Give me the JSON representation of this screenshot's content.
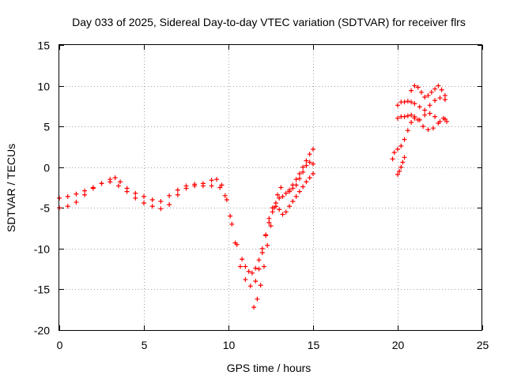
{
  "chart_data": {
    "type": "scatter",
    "title": "Day 033 of 2025, Sidereal Day-to-day VTEC variation (SDTVAR) for receiver flrs",
    "xlabel": "GPS time / hours",
    "ylabel": "SDTVAR / TECUs",
    "xlim": [
      0,
      25
    ],
    "ylim": [
      -20,
      15
    ],
    "xticks": [
      0,
      5,
      10,
      15,
      20,
      25
    ],
    "yticks": [
      -20,
      -15,
      -10,
      -5,
      0,
      5,
      10,
      15
    ],
    "xtick_labels": [
      "0",
      "5",
      "10",
      "15",
      "20",
      "25"
    ],
    "ytick_labels": [
      "-20",
      "-15",
      "-10",
      "-5",
      "0",
      "5",
      "10",
      "15"
    ],
    "grid": true,
    "marker": "plus",
    "color": "#ff0000",
    "series": [
      {
        "x": [
          0.0,
          0.5,
          1.0,
          1.5,
          2.0,
          2.5,
          3.0,
          3.3,
          3.6,
          4.0,
          4.5,
          5.0,
          5.5,
          6.0,
          6.5,
          7.0,
          7.5,
          8.0,
          8.5,
          9.0,
          9.3,
          9.6,
          9.9,
          10.2,
          10.5,
          10.8,
          11.0,
          11.2,
          11.4,
          11.6,
          11.8,
          12.0,
          12.2,
          12.4,
          12.6,
          12.8,
          13.0,
          13.2,
          13.4,
          13.6,
          13.8,
          14.0,
          14.2,
          14.4,
          14.6,
          14.8,
          15.0
        ],
        "y": [
          -3.8,
          -3.6,
          -3.3,
          -2.9,
          -2.5,
          -2.0,
          -1.5,
          -1.3,
          -1.8,
          -2.6,
          -3.2,
          -3.6,
          -4.0,
          -4.2,
          -3.5,
          -2.8,
          -2.3,
          -2.1,
          -2.0,
          -1.6,
          -1.5,
          -2.2,
          -4.0,
          -7.0,
          -9.5,
          -11.3,
          -12.2,
          -12.8,
          -13.0,
          -12.4,
          -11.4,
          -10.0,
          -8.3,
          -6.8,
          -5.5,
          -4.4,
          -3.8,
          -3.6,
          -3.2,
          -2.8,
          -2.2,
          -1.5,
          -0.8,
          0.0,
          0.8,
          1.6,
          2.2
        ]
      },
      {
        "x": [
          0.0,
          0.5,
          1.0,
          1.5,
          2.0,
          2.5,
          3.0,
          3.5,
          4.0,
          4.5,
          5.0,
          5.5,
          6.0,
          6.5,
          7.0,
          7.5,
          8.0,
          8.5,
          9.0,
          9.5,
          9.8,
          10.1,
          10.4,
          10.7,
          11.0,
          11.3,
          11.6,
          11.8,
          12.0,
          12.2,
          12.4,
          12.6,
          12.8,
          13.0,
          13.2,
          13.4,
          13.6,
          13.8,
          14.0,
          14.2,
          14.4,
          14.6,
          14.8,
          15.0
        ],
        "y": [
          -5.0,
          -4.8,
          -4.3,
          -3.4,
          -2.6,
          -2.0,
          -1.8,
          -2.3,
          -3.0,
          -3.8,
          -4.4,
          -4.8,
          -5.1,
          -4.6,
          -3.4,
          -2.6,
          -2.3,
          -2.3,
          -2.3,
          -2.5,
          -3.5,
          -6.0,
          -9.3,
          -12.2,
          -13.8,
          -14.6,
          -14.0,
          -12.5,
          -10.5,
          -8.4,
          -6.3,
          -5.0,
          -4.8,
          -5.2,
          -5.8,
          -5.5,
          -4.8,
          -4.2,
          -3.6,
          -3.0,
          -2.4,
          -1.8,
          -1.3,
          -0.8
        ]
      },
      {
        "x": [
          11.5,
          11.7,
          11.9,
          12.1,
          12.3,
          12.5,
          12.7,
          12.9,
          13.1
        ],
        "y": [
          -17.2,
          -16.2,
          -14.5,
          -12.2,
          -9.6,
          -7.2,
          -5.0,
          -3.4,
          -2.5
        ]
      },
      {
        "x": [
          13.6,
          13.8,
          14.0,
          14.2,
          14.4,
          14.6,
          14.8,
          15.0
        ],
        "y": [
          -3.0,
          -2.6,
          -2.2,
          -1.4,
          -0.6,
          0.2,
          0.6,
          0.4
        ]
      },
      {
        "x": [
          19.7,
          19.8,
          20.0,
          20.2,
          20.4,
          20.6,
          20.8,
          21.0,
          21.2,
          21.5,
          21.8,
          22.1,
          22.4,
          22.7,
          22.9
        ],
        "y": [
          1.0,
          1.8,
          2.2,
          2.6,
          3.4,
          4.5,
          5.5,
          6.0,
          5.8,
          5.0,
          4.6,
          4.8,
          5.4,
          6.0,
          5.6
        ]
      },
      {
        "x": [
          20.0,
          20.2,
          20.4,
          20.6,
          20.8,
          21.0,
          21.3,
          21.6,
          21.9,
          22.2,
          22.5,
          22.8
        ],
        "y": [
          6.0,
          6.2,
          6.2,
          6.3,
          6.4,
          6.2,
          5.8,
          6.4,
          6.6,
          6.2,
          5.6,
          5.9
        ]
      },
      {
        "x": [
          20.0,
          20.2,
          20.4,
          20.6,
          20.8,
          21.0,
          21.3,
          21.6,
          21.9,
          22.2,
          22.5,
          22.8
        ],
        "y": [
          7.6,
          8.0,
          8.0,
          8.1,
          8.0,
          7.8,
          7.4,
          7.0,
          7.6,
          8.2,
          8.5,
          8.3
        ]
      },
      {
        "x": [
          20.8,
          21.0,
          21.2,
          21.4,
          21.6,
          21.8,
          22.0,
          22.2,
          22.4,
          22.6,
          22.8
        ],
        "y": [
          9.4,
          10.0,
          9.8,
          9.2,
          8.6,
          8.8,
          9.2,
          9.6,
          10.0,
          9.5,
          8.8
        ]
      },
      {
        "x": [
          20.0,
          20.1,
          20.2,
          20.3,
          20.4
        ],
        "y": [
          -0.9,
          -0.5,
          0.0,
          0.6,
          1.2
        ]
      }
    ]
  }
}
